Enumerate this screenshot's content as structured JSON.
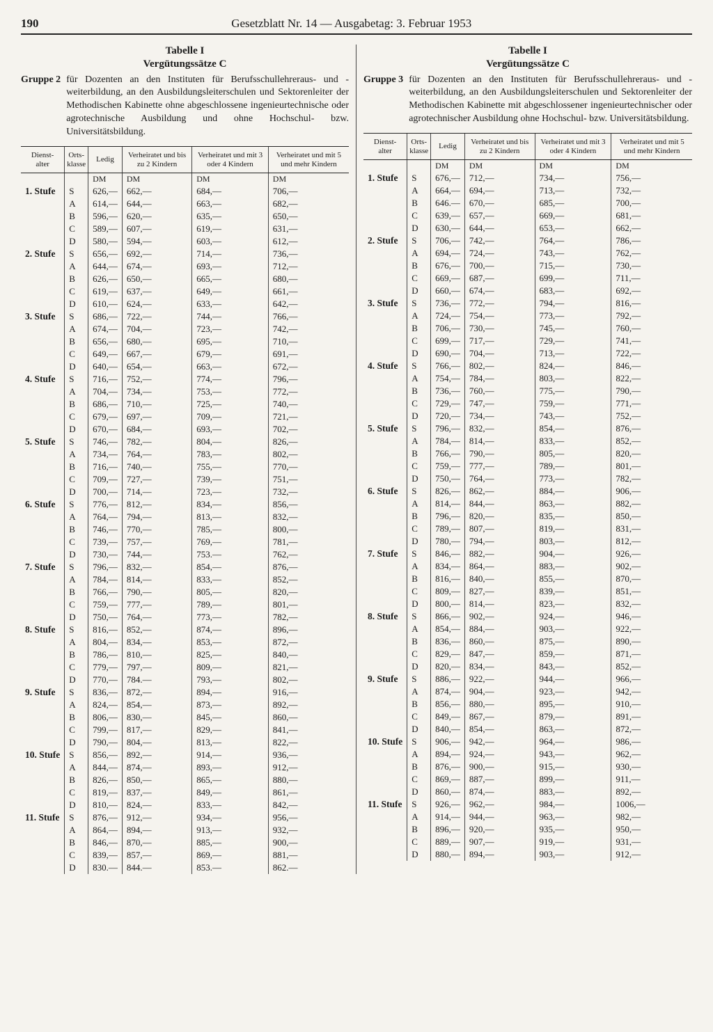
{
  "page_number": "190",
  "header": "Gesetzblatt Nr. 14 — Ausgabetag: 3. Februar 1953",
  "currency": "DM",
  "table_common": {
    "title": "Tabelle I",
    "subtitle": "Vergütungssätze C",
    "col_headers": {
      "dienstalter": "Dienst-\nalter",
      "ortsklasse": "Orts-\nklasse",
      "ledig": "Ledig",
      "verh2": "Verheiratet und bis zu 2 Kindern",
      "verh34": "Verheiratet und mit 3 oder 4 Kindern",
      "verh5": "Verheiratet und mit 5 und mehr Kindern"
    },
    "ortsklassen": [
      "S",
      "A",
      "B",
      "C",
      "D"
    ]
  },
  "left": {
    "group_label": "Gruppe 2",
    "group_text": "für Dozenten an den Instituten für Berufsschullehreraus- und -weiterbildung, an den Ausbildungsleiterschulen und Sektorenleiter der Methodischen Kabinette ohne abgeschlossene ingenieurtechnische oder agrotechnische Ausbildung und ohne Hochschul- bzw. Universitätsbildung.",
    "stufen": [
      {
        "name": "1. Stufe",
        "rows": [
          [
            "626,—",
            "662,—",
            "684,—",
            "706,—"
          ],
          [
            "614,—",
            "644,—",
            "663,—",
            "682,—"
          ],
          [
            "596,—",
            "620,—",
            "635,—",
            "650,—"
          ],
          [
            "589,—",
            "607,—",
            "619,—",
            "631,—"
          ],
          [
            "580,—",
            "594,—",
            "603,—",
            "612,—"
          ]
        ]
      },
      {
        "name": "2. Stufe",
        "rows": [
          [
            "656,—",
            "692,—",
            "714,—",
            "736,—"
          ],
          [
            "644,—",
            "674,—",
            "693,—",
            "712,—"
          ],
          [
            "626,—",
            "650,—",
            "665,—",
            "680,—"
          ],
          [
            "619,—",
            "637,—",
            "649,—",
            "661,—"
          ],
          [
            "610,—",
            "624,—",
            "633,—",
            "642,—"
          ]
        ]
      },
      {
        "name": "3. Stufe",
        "rows": [
          [
            "686,—",
            "722,—",
            "744,—",
            "766,—"
          ],
          [
            "674,—",
            "704,—",
            "723,—",
            "742,—"
          ],
          [
            "656,—",
            "680,—",
            "695,—",
            "710,—"
          ],
          [
            "649,—",
            "667,—",
            "679,—",
            "691,—"
          ],
          [
            "640,—",
            "654,—",
            "663,—",
            "672,—"
          ]
        ]
      },
      {
        "name": "4. Stufe",
        "rows": [
          [
            "716,—",
            "752,—",
            "774,—",
            "796,—"
          ],
          [
            "704,—",
            "734,—",
            "753,—",
            "772,—"
          ],
          [
            "686,—",
            "710,—",
            "725,—",
            "740,—"
          ],
          [
            "679,—",
            "697,—",
            "709,—",
            "721,—"
          ],
          [
            "670,—",
            "684,—",
            "693,—",
            "702,—"
          ]
        ]
      },
      {
        "name": "5. Stufe",
        "rows": [
          [
            "746,—",
            "782,—",
            "804,—",
            "826,—"
          ],
          [
            "734,—",
            "764,—",
            "783,—",
            "802,—"
          ],
          [
            "716,—",
            "740,—",
            "755,—",
            "770,—"
          ],
          [
            "709,—",
            "727,—",
            "739,—",
            "751,—"
          ],
          [
            "700,—",
            "714,—",
            "723,—",
            "732,—"
          ]
        ]
      },
      {
        "name": "6. Stufe",
        "rows": [
          [
            "776,—",
            "812,—",
            "834,—",
            "856,—"
          ],
          [
            "764,—",
            "794,—",
            "813,—",
            "832,—"
          ],
          [
            "746,—",
            "770,—",
            "785,—",
            "800,—"
          ],
          [
            "739,—",
            "757,—",
            "769,—",
            "781,—"
          ],
          [
            "730,—",
            "744,—",
            "753.—",
            "762,—"
          ]
        ]
      },
      {
        "name": "7. Stufe",
        "rows": [
          [
            "796,—",
            "832,—",
            "854,—",
            "876,—"
          ],
          [
            "784,—",
            "814,—",
            "833,—",
            "852,—"
          ],
          [
            "766,—",
            "790,—",
            "805,—",
            "820,—"
          ],
          [
            "759,—",
            "777,—",
            "789,—",
            "801,—"
          ],
          [
            "750,—",
            "764,—",
            "773,—",
            "782,—"
          ]
        ]
      },
      {
        "name": "8. Stufe",
        "rows": [
          [
            "816,—",
            "852,—",
            "874,—",
            "896,—"
          ],
          [
            "804,—",
            "834,—",
            "853,—",
            "872,—"
          ],
          [
            "786,—",
            "810,—",
            "825,—",
            "840,—"
          ],
          [
            "779,—",
            "797,—",
            "809,—",
            "821,—"
          ],
          [
            "770,—",
            "784.—",
            "793,—",
            "802,—"
          ]
        ]
      },
      {
        "name": "9. Stufe",
        "rows": [
          [
            "836,—",
            "872,—",
            "894,—",
            "916,—"
          ],
          [
            "824,—",
            "854,—",
            "873,—",
            "892,—"
          ],
          [
            "806,—",
            "830,—",
            "845,—",
            "860,—"
          ],
          [
            "799,—",
            "817,—",
            "829,—",
            "841,—"
          ],
          [
            "790,—",
            "804,—",
            "813,—",
            "822,—"
          ]
        ]
      },
      {
        "name": "10. Stufe",
        "rows": [
          [
            "856,—",
            "892,—",
            "914,—",
            "936,—"
          ],
          [
            "844,—",
            "874,—",
            "893,—",
            "912,—"
          ],
          [
            "826,—",
            "850,—",
            "865,—",
            "880,—"
          ],
          [
            "819,—",
            "837,—",
            "849,—",
            "861,—"
          ],
          [
            "810,—",
            "824,—",
            "833,—",
            "842,—"
          ]
        ]
      },
      {
        "name": "11. Stufe",
        "rows": [
          [
            "876,—",
            "912,—",
            "934,—",
            "956,—"
          ],
          [
            "864,—",
            "894,—",
            "913,—",
            "932,—"
          ],
          [
            "846,—",
            "870,—",
            "885,—",
            "900,—"
          ],
          [
            "839,—",
            "857,—",
            "869,—",
            "881,—"
          ],
          [
            "830.—",
            "844.—",
            "853.—",
            "862.—"
          ]
        ]
      }
    ]
  },
  "right": {
    "group_label": "Gruppe 3",
    "group_text": "für Dozenten an den Instituten für Berufsschullehreraus- und -weiterbildung, an den Ausbildungsleiterschulen und Sektorenleiter der Methodischen Kabinette mit abgeschlossener ingenieurtechnischer oder agrotechnischer Ausbildung ohne Hochschul- bzw. Universitätsbildung.",
    "stufen": [
      {
        "name": "1. Stufe",
        "rows": [
          [
            "676,—",
            "712,—",
            "734,—",
            "756,—"
          ],
          [
            "664,—",
            "694,—",
            "713,—",
            "732,—"
          ],
          [
            "646.—",
            "670,—",
            "685,—",
            "700,—"
          ],
          [
            "639,—",
            "657,—",
            "669,—",
            "681,—"
          ],
          [
            "630,—",
            "644,—",
            "653,—",
            "662,—"
          ]
        ]
      },
      {
        "name": "2. Stufe",
        "rows": [
          [
            "706,—",
            "742,—",
            "764,—",
            "786,—"
          ],
          [
            "694,—",
            "724,—",
            "743,—",
            "762,—"
          ],
          [
            "676,—",
            "700,—",
            "715,—",
            "730,—"
          ],
          [
            "669,—",
            "687,—",
            "699,—",
            "711,—"
          ],
          [
            "660,—",
            "674,—",
            "683,—",
            "692,—"
          ]
        ]
      },
      {
        "name": "3. Stufe",
        "rows": [
          [
            "736,—",
            "772,—",
            "794,—",
            "816,—"
          ],
          [
            "724,—",
            "754,—",
            "773,—",
            "792,—"
          ],
          [
            "706,—",
            "730,—",
            "745,—",
            "760,—"
          ],
          [
            "699,—",
            "717,—",
            "729,—",
            "741,—"
          ],
          [
            "690,—",
            "704,—",
            "713,—",
            "722,—"
          ]
        ]
      },
      {
        "name": "4. Stufe",
        "rows": [
          [
            "766,—",
            "802,—",
            "824,—",
            "846,—"
          ],
          [
            "754,—",
            "784,—",
            "803,—",
            "822,—"
          ],
          [
            "736,—",
            "760,—",
            "775,—",
            "790,—"
          ],
          [
            "729,—",
            "747,—",
            "759,—",
            "771,—"
          ],
          [
            "720,—",
            "734,—",
            "743,—",
            "752,—"
          ]
        ]
      },
      {
        "name": "5. Stufe",
        "rows": [
          [
            "796,—",
            "832,—",
            "854,—",
            "876,—"
          ],
          [
            "784,—",
            "814,—",
            "833,—",
            "852,—"
          ],
          [
            "766,—",
            "790,—",
            "805,—",
            "820,—"
          ],
          [
            "759,—",
            "777,—",
            "789,—",
            "801,—"
          ],
          [
            "750,—",
            "764,—",
            "773,—",
            "782,—"
          ]
        ]
      },
      {
        "name": "6. Stufe",
        "rows": [
          [
            "826,—",
            "862,—",
            "884,—",
            "906,—"
          ],
          [
            "814,—",
            "844,—",
            "863,—",
            "882,—"
          ],
          [
            "796,—",
            "820,—",
            "835,—",
            "850,—"
          ],
          [
            "789,—",
            "807,—",
            "819,—",
            "831,—"
          ],
          [
            "780,—",
            "794,—",
            "803,—",
            "812,—"
          ]
        ]
      },
      {
        "name": "7. Stufe",
        "rows": [
          [
            "846,—",
            "882,—",
            "904,—",
            "926,—"
          ],
          [
            "834,—",
            "864,—",
            "883,—",
            "902,—"
          ],
          [
            "816,—",
            "840,—",
            "855,—",
            "870,—"
          ],
          [
            "809,—",
            "827,—",
            "839,—",
            "851,—"
          ],
          [
            "800,—",
            "814,—",
            "823,—",
            "832,—"
          ]
        ]
      },
      {
        "name": "8. Stufe",
        "rows": [
          [
            "866,—",
            "902,—",
            "924,—",
            "946,—"
          ],
          [
            "854,—",
            "884,—",
            "903,—",
            "922,—"
          ],
          [
            "836,—",
            "860,—",
            "875,—",
            "890,—"
          ],
          [
            "829,—",
            "847,—",
            "859,—",
            "871,—"
          ],
          [
            "820,—",
            "834,—",
            "843,—",
            "852,—"
          ]
        ]
      },
      {
        "name": "9. Stufe",
        "rows": [
          [
            "886,—",
            "922,—",
            "944,—",
            "966,—"
          ],
          [
            "874,—",
            "904,—",
            "923,—",
            "942,—"
          ],
          [
            "856,—",
            "880,—",
            "895,—",
            "910,—"
          ],
          [
            "849,—",
            "867,—",
            "879,—",
            "891,—"
          ],
          [
            "840,—",
            "854,—",
            "863,—",
            "872,—"
          ]
        ]
      },
      {
        "name": "10. Stufe",
        "rows": [
          [
            "906,—",
            "942,—",
            "964,—",
            "986,—"
          ],
          [
            "894,—",
            "924,—",
            "943,—",
            "962,—"
          ],
          [
            "876,—",
            "900,—",
            "915,—",
            "930,—"
          ],
          [
            "869,—",
            "887,—",
            "899,—",
            "911,—"
          ],
          [
            "860,—",
            "874,—",
            "883,—",
            "892,—"
          ]
        ]
      },
      {
        "name": "11. Stufe",
        "rows": [
          [
            "926,—",
            "962,—",
            "984,—",
            "1006,—"
          ],
          [
            "914,—",
            "944,—",
            "963,—",
            "982,—"
          ],
          [
            "896,—",
            "920,—",
            "935,—",
            "950,—"
          ],
          [
            "889,—",
            "907,—",
            "919,—",
            "931,—"
          ],
          [
            "880,—",
            "894,—",
            "903,—",
            "912,—"
          ]
        ]
      }
    ]
  }
}
